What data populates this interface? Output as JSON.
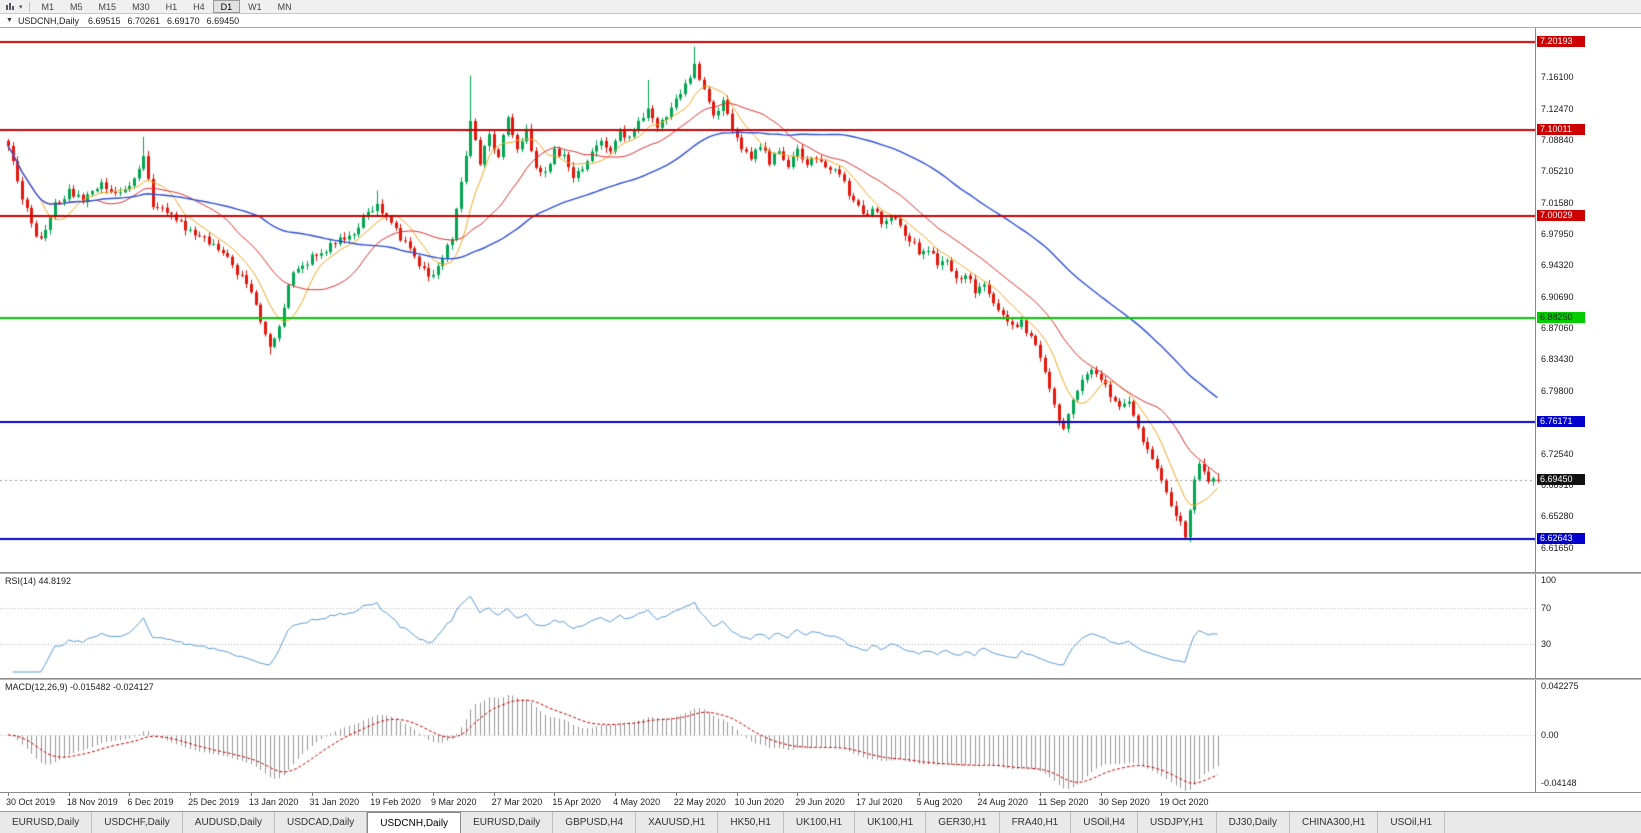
{
  "toolbar": {
    "timeframes": [
      "M1",
      "M5",
      "M15",
      "M30",
      "H1",
      "H4",
      "D1",
      "W1",
      "MN"
    ],
    "active_timeframe": "D1"
  },
  "chart": {
    "title": "USDCNH,Daily",
    "ohlc": {
      "open": "6.69515",
      "high": "6.70261",
      "low": "6.69170",
      "close": "6.69450"
    },
    "price_axis_labels": [
      "7.16100",
      "7.12470",
      "7.08840",
      "7.05210",
      "7.01580",
      "6.97950",
      "6.94320",
      "6.90690",
      "6.87060",
      "6.83430",
      "6.79800",
      "6.76170",
      "6.72540",
      "6.68910",
      "6.65280",
      "6.61650"
    ],
    "levels": [
      {
        "price": 7.20193,
        "label": "7.20193",
        "line_color": "#cc0000",
        "tag_text_color": "#ffffff"
      },
      {
        "price": 7.10011,
        "label": "7.10011",
        "line_color": "#cc0000",
        "tag_text_color": "#ffffff"
      },
      {
        "price": 7.00029,
        "label": "7.00029",
        "line_color": "#cc0000",
        "tag_text_color": "#ffffff"
      },
      {
        "price": 6.8825,
        "label": "6.88250",
        "line_color": "#00cc00",
        "tag_text_color": "#002200"
      },
      {
        "price": 6.76171,
        "label": "6.76171",
        "line_color": "#0000cc",
        "tag_text_color": "#ffffff"
      },
      {
        "price": 6.62643,
        "label": "6.62643",
        "line_color": "#0000cc",
        "tag_text_color": "#ffffff"
      }
    ],
    "current_price": {
      "value": 6.6945,
      "label": "6.69450",
      "tag_bg": "#111111",
      "tag_text_color": "#ffffff",
      "line_color": "#999999"
    }
  },
  "rsi": {
    "label": "RSI(14) 44.8192",
    "axis_labels": [
      "100",
      "70",
      "30"
    ],
    "level_lines": [
      70,
      30
    ],
    "line_color": "#5b9bd5"
  },
  "macd": {
    "label": "MACD(12,26,9) -0.015482 -0.024127",
    "axis_labels": [
      "0.042275",
      "0.00",
      "-0.04148"
    ],
    "hist_color": "#979797",
    "signal_color": "#cc0000"
  },
  "time_axis": {
    "labels": [
      "30 Oct 2019",
      "18 Nov 2019",
      "6 Dec 2019",
      "25 Dec 2019",
      "13 Jan 2020",
      "31 Jan 2020",
      "19 Feb 2020",
      "9 Mar 2020",
      "27 Mar 2020",
      "15 Apr 2020",
      "4 May 2020",
      "22 May 2020",
      "10 Jun 2020",
      "29 Jun 2020",
      "17 Jul 2020",
      "5 Aug 2020",
      "24 Aug 2020",
      "11 Sep 2020",
      "30 Sep 2020",
      "19 Oct 2020"
    ],
    "bars_per_label": 13
  },
  "tabs": {
    "active_index": 4,
    "items": [
      "EURUSD,Daily",
      "USDCHF,Daily",
      "AUDUSD,Daily",
      "USDCAD,Daily",
      "USDCNH,Daily",
      "EURUSD,Daily",
      "GBPUSD,H4",
      "XAUUSD,H1",
      "HK50,H1",
      "UK100,H1",
      "UK100,H1",
      "GER30,H1",
      "FRA40,H1",
      "USOil,H4",
      "USDJPY,H1",
      "DJ30,Daily",
      "CHINA300,H1",
      "USOil,H1"
    ],
    "active_label": "USDCNH,Daily"
  },
  "colors": {
    "up": "#00a651",
    "down": "#e3170d",
    "background": "#ffffff",
    "chrome": "#f0f0f0"
  },
  "chart_data": {
    "type": "candlestick",
    "symbol": "USDCNH",
    "timeframe": "Daily",
    "title": "USDCNH,Daily",
    "bars": 260,
    "price_range": [
      6.5882,
      7.2181
    ],
    "close_path": [
      [
        0,
        7.078
      ],
      [
        2,
        7.042
      ],
      [
        5,
        6.988
      ],
      [
        7,
        6.973
      ],
      [
        10,
        7.012
      ],
      [
        13,
        7.028
      ],
      [
        16,
        7.018
      ],
      [
        20,
        7.035
      ],
      [
        24,
        7.028
      ],
      [
        27,
        7.045
      ],
      [
        29,
        7.072
      ],
      [
        31,
        7.012
      ],
      [
        34,
        7.004
      ],
      [
        38,
        6.986
      ],
      [
        42,
        6.974
      ],
      [
        46,
        6.958
      ],
      [
        50,
        6.928
      ],
      [
        53,
        6.898
      ],
      [
        56,
        6.845
      ],
      [
        58,
        6.872
      ],
      [
        60,
        6.924
      ],
      [
        63,
        6.944
      ],
      [
        66,
        6.955
      ],
      [
        70,
        6.968
      ],
      [
        74,
        6.981
      ],
      [
        77,
        7.006
      ],
      [
        79,
        7.015
      ],
      [
        81,
        6.996
      ],
      [
        84,
        6.975
      ],
      [
        87,
        6.951
      ],
      [
        90,
        6.928
      ],
      [
        93,
        6.954
      ],
      [
        95,
        6.976
      ],
      [
        97,
        7.04
      ],
      [
        99,
        7.108
      ],
      [
        101,
        7.062
      ],
      [
        103,
        7.092
      ],
      [
        105,
        7.068
      ],
      [
        107,
        7.112
      ],
      [
        109,
        7.078
      ],
      [
        111,
        7.098
      ],
      [
        113,
        7.058
      ],
      [
        115,
        7.052
      ],
      [
        117,
        7.078
      ],
      [
        119,
        7.068
      ],
      [
        121,
        7.048
      ],
      [
        124,
        7.064
      ],
      [
        127,
        7.088
      ],
      [
        129,
        7.078
      ],
      [
        131,
        7.098
      ],
      [
        133,
        7.092
      ],
      [
        135,
        7.108
      ],
      [
        137,
        7.128
      ],
      [
        139,
        7.104
      ],
      [
        141,
        7.118
      ],
      [
        143,
        7.134
      ],
      [
        145,
        7.154
      ],
      [
        147,
        7.175
      ],
      [
        149,
        7.148
      ],
      [
        151,
        7.118
      ],
      [
        153,
        7.132
      ],
      [
        155,
        7.098
      ],
      [
        157,
        7.078
      ],
      [
        159,
        7.068
      ],
      [
        161,
        7.084
      ],
      [
        163,
        7.064
      ],
      [
        165,
        7.074
      ],
      [
        167,
        7.058
      ],
      [
        169,
        7.074
      ],
      [
        171,
        7.064
      ],
      [
        173,
        7.068
      ],
      [
        175,
        7.054
      ],
      [
        177,
        7.058
      ],
      [
        179,
        7.038
      ],
      [
        181,
        7.018
      ],
      [
        183,
        6.999
      ],
      [
        185,
        7.008
      ],
      [
        187,
        6.994
      ],
      [
        189,
        7.004
      ],
      [
        191,
        6.988
      ],
      [
        193,
        6.974
      ],
      [
        195,
        6.959
      ],
      [
        197,
        6.964
      ],
      [
        199,
        6.944
      ],
      [
        201,
        6.949
      ],
      [
        203,
        6.929
      ],
      [
        205,
        6.934
      ],
      [
        207,
        6.914
      ],
      [
        209,
        6.919
      ],
      [
        211,
        6.899
      ],
      [
        213,
        6.889
      ],
      [
        215,
        6.874
      ],
      [
        217,
        6.879
      ],
      [
        219,
        6.859
      ],
      [
        221,
        6.838
      ],
      [
        223,
        6.798
      ],
      [
        225,
        6.768
      ],
      [
        226,
        6.757
      ],
      [
        228,
        6.788
      ],
      [
        230,
        6.814
      ],
      [
        232,
        6.824
      ],
      [
        234,
        6.809
      ],
      [
        236,
        6.794
      ],
      [
        238,
        6.778
      ],
      [
        240,
        6.784
      ],
      [
        242,
        6.754
      ],
      [
        244,
        6.728
      ],
      [
        246,
        6.708
      ],
      [
        248,
        6.684
      ],
      [
        250,
        6.654
      ],
      [
        252,
        6.632
      ],
      [
        253,
        6.66
      ],
      [
        254,
        6.692
      ],
      [
        255,
        6.714
      ],
      [
        256,
        6.706
      ],
      [
        257,
        6.696
      ],
      [
        258,
        6.701
      ],
      [
        259,
        6.6945
      ]
    ],
    "spikes": [
      {
        "i": 29,
        "high": 7.092
      },
      {
        "i": 56,
        "low": 6.84
      },
      {
        "i": 79,
        "high": 7.03
      },
      {
        "i": 99,
        "high": 7.163
      },
      {
        "i": 137,
        "high": 7.158
      },
      {
        "i": 147,
        "high": 7.1965
      },
      {
        "i": 226,
        "low": 6.752
      },
      {
        "i": 252,
        "low": 6.627
      }
    ],
    "moving_averages": [
      {
        "type": "SMA",
        "period": 8,
        "color": "#f5a623"
      },
      {
        "type": "SMA",
        "period": 20,
        "color": "#e03030"
      },
      {
        "type": "SMA",
        "period": 55,
        "color": "#2f4fd8"
      }
    ],
    "rsi": {
      "period": 14,
      "current": 44.8192,
      "levels": [
        70,
        30
      ]
    },
    "macd": {
      "fast": 12,
      "slow": 26,
      "signal": 9,
      "current": -0.015482,
      "signal_current": -0.024127
    },
    "macd_axis_range": [
      0.042275,
      -0.04148
    ]
  }
}
